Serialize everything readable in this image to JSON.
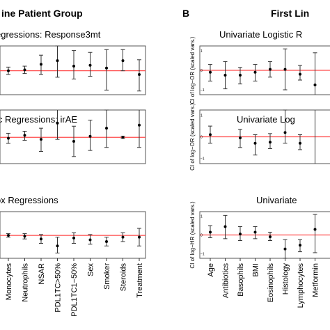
{
  "figure": {
    "header_left": "ine Patient Group",
    "panel_label_b": "B",
    "header_right": "First Lin"
  },
  "colors": {
    "reference_line": "#ff4a4a",
    "point": "#000000",
    "frame": "#555555"
  },
  "chart_data": [
    {
      "type": "scatter",
      "panel": "A1",
      "title": "egressions: Response3mt",
      "categories": [
        "Monocytes",
        "Neutrophils",
        "NSAR",
        "PDL1TC>50%",
        "PDL1TC1−50%",
        "Sex",
        "Smoker",
        "Steroids",
        "Treatment"
      ],
      "estimate": [
        0.0,
        0.05,
        0.35,
        0.55,
        0.25,
        0.3,
        0.15,
        0.55,
        -0.2
      ],
      "ci_low": [
        -0.2,
        -0.15,
        -0.2,
        -0.35,
        -0.45,
        -0.3,
        -1.05,
        0.0,
        -1.1
      ],
      "ci_high": [
        0.2,
        0.25,
        0.85,
        1.35,
        1.1,
        1.0,
        1.15,
        1.15,
        0.6
      ],
      "reference_line": 0,
      "ylim": [
        -1.3,
        1.35
      ]
    },
    {
      "type": "scatter",
      "panel": "A2",
      "title": "ic Regressions: irAE",
      "categories": [
        "Monocytes",
        "Neutrophils",
        "NSAR",
        "PDL1TC>50%",
        "PDL1TC1−50%",
        "Sex",
        "Smoker",
        "Steroids",
        "Treatment"
      ],
      "estimate": [
        -0.05,
        0.1,
        -0.1,
        0.7,
        -0.2,
        0.05,
        0.45,
        0.0,
        0.6
      ],
      "ci_low": [
        -0.3,
        -0.15,
        -0.7,
        -0.1,
        -0.95,
        -0.65,
        -0.5,
        -0.05,
        -0.5
      ],
      "ci_high": [
        0.2,
        0.3,
        0.45,
        1.5,
        0.55,
        0.85,
        1.35,
        0.05,
        1.5
      ],
      "reference_line": 0,
      "ylim": [
        -1.3,
        1.35
      ]
    },
    {
      "type": "scatter",
      "panel": "A3",
      "title": "ox Regressions",
      "categories": [
        "Monocytes",
        "Neutrophils",
        "NSAR",
        "PDL1TC>50%",
        "PDL1TC1−50%",
        "Sex",
        "Smoker",
        "Steroids",
        "Treatment"
      ],
      "estimate": [
        0.0,
        -0.05,
        -0.2,
        -0.6,
        -0.15,
        -0.25,
        -0.35,
        -0.1,
        -0.1
      ],
      "ci_low": [
        -0.1,
        -0.2,
        -0.45,
        -1.0,
        -0.45,
        -0.5,
        -0.6,
        -0.35,
        -0.6
      ],
      "ci_high": [
        0.1,
        0.1,
        0.05,
        -0.1,
        0.15,
        0.05,
        -0.1,
        0.15,
        0.4
      ],
      "reference_line": 0,
      "ylim": [
        -1.3,
        1.35
      ]
    },
    {
      "type": "scatter",
      "panel": "B1",
      "title": "Univariate Logistic R",
      "ylabel": "CI of log−OR (scaled vars.)",
      "yticks": [
        "−1",
        "0",
        "1"
      ],
      "ytick_values": [
        -1,
        0,
        1
      ],
      "categories": [
        "Age",
        "Antibiotics",
        "Basophils",
        "BMI",
        "Eosinophils",
        "Histology",
        "Lymphocytes",
        "Metformin"
      ],
      "estimate": [
        -0.1,
        -0.25,
        -0.25,
        -0.1,
        0.05,
        0.05,
        -0.2,
        -0.75
      ],
      "ci_low": [
        -0.55,
        -0.95,
        -0.7,
        -0.55,
        -0.35,
        -1.0,
        -0.5,
        -1.8
      ],
      "ci_high": [
        0.3,
        0.45,
        0.15,
        0.3,
        0.45,
        1.1,
        0.25,
        0.9
      ],
      "reference_line": 0,
      "ylim": [
        -1.25,
        1.25
      ]
    },
    {
      "type": "scatter",
      "panel": "B2",
      "title": "Univariate Log",
      "ylabel": "CI of log−OR (scaled vars.)",
      "yticks": [
        "−1",
        "0",
        "1"
      ],
      "ytick_values": [
        -1,
        0,
        1
      ],
      "categories": [
        "Age",
        "Antibiotics",
        "Basophils",
        "BMI",
        "Eosinophils",
        "Histology",
        "Lymphocytes",
        "Metformin"
      ],
      "estimate": [
        0.1,
        null,
        -0.05,
        -0.3,
        -0.25,
        0.2,
        -0.3,
        null
      ],
      "ci_low": [
        -0.3,
        null,
        -0.5,
        -0.85,
        -0.55,
        -0.3,
        -0.6,
        -1.8
      ],
      "ci_high": [
        0.5,
        null,
        0.35,
        0.1,
        0.15,
        1.25,
        0.1,
        1.8
      ],
      "reference_line": 0,
      "ylim": [
        -1.25,
        1.25
      ]
    },
    {
      "type": "scatter",
      "panel": "B3",
      "title": "Univariate",
      "ylabel": "CI of log−HR (scaled vars.)",
      "yticks": [
        "−1",
        "0",
        "1"
      ],
      "ytick_values": [
        -1,
        0,
        1
      ],
      "categories": [
        "Age",
        "Antibiotics",
        "Basophils",
        "BMI",
        "Eosinophils",
        "Histology",
        "Lymphocytes",
        "Metformin"
      ],
      "estimate": [
        0.15,
        0.45,
        0.05,
        0.15,
        -0.1,
        -0.75,
        -0.55,
        0.3
      ],
      "ci_low": [
        -0.15,
        -0.2,
        -0.3,
        -0.2,
        -0.3,
        -1.25,
        -0.9,
        -0.95
      ],
      "ci_high": [
        0.5,
        1.05,
        0.45,
        0.45,
        0.15,
        -0.25,
        -0.25,
        1.1
      ],
      "reference_line": 0,
      "ylim": [
        -1.25,
        1.25
      ]
    }
  ]
}
